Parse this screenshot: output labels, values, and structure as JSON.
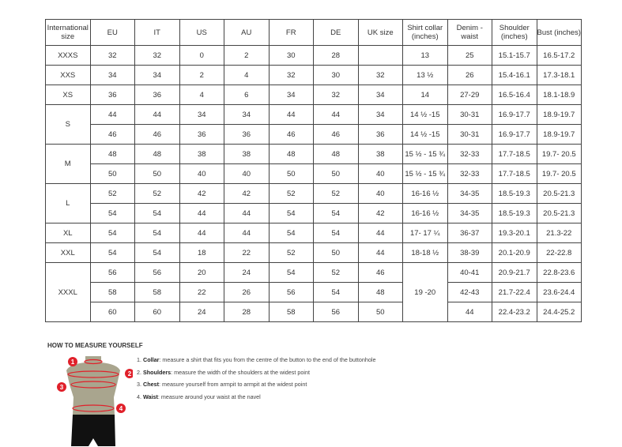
{
  "table": {
    "headers": [
      "International size",
      "EU",
      "IT",
      "US",
      "AU",
      "FR",
      "DE",
      "UK size",
      "Shirt collar (inches)",
      "Denim - waist",
      "Shoulder (inches)",
      "Bust (inches)"
    ],
    "groups": [
      {
        "size": "XXXS",
        "rows": [
          [
            "32",
            "32",
            "0",
            "2",
            "30",
            "28",
            "",
            "13",
            "25",
            "15.1-15.7",
            "16.5-17.2"
          ]
        ]
      },
      {
        "size": "XXS",
        "rows": [
          [
            "34",
            "34",
            "2",
            "4",
            "32",
            "30",
            "32",
            "13 ½",
            "26",
            "15.4-16.1",
            "17.3-18.1"
          ]
        ]
      },
      {
        "size": "XS",
        "rows": [
          [
            "36",
            "36",
            "4",
            "6",
            "34",
            "32",
            "34",
            "14",
            "27-29",
            "16.5-16.4",
            "18.1-18.9"
          ]
        ]
      },
      {
        "size": "S",
        "rows": [
          [
            "44",
            "44",
            "34",
            "34",
            "44",
            "44",
            "34",
            "14 ½ -15",
            "30-31",
            "16.9-17.7",
            "18.9-19.7"
          ],
          [
            "46",
            "46",
            "36",
            "36",
            "46",
            "46",
            "36",
            "14 ½ -15",
            "30-31",
            "16.9-17.7",
            "18.9-19.7"
          ]
        ]
      },
      {
        "size": "M",
        "rows": [
          [
            "48",
            "48",
            "38",
            "38",
            "48",
            "48",
            "38",
            "15 ½ - 15 ¾",
            "32-33",
            "17.7-18.5",
            "19.7- 20.5"
          ],
          [
            "50",
            "50",
            "40",
            "40",
            "50",
            "50",
            "40",
            "15 ½ - 15 ¾",
            "32-33",
            "17.7-18.5",
            "19.7- 20.5"
          ]
        ]
      },
      {
        "size": "L",
        "rows": [
          [
            "52",
            "52",
            "42",
            "42",
            "52",
            "52",
            "40",
            "16-16 ½",
            "34-35",
            "18.5-19.3",
            "20.5-21.3"
          ],
          [
            "54",
            "54",
            "44",
            "44",
            "54",
            "54",
            "42",
            "16-16 ½",
            "34-35",
            "18.5-19.3",
            "20.5-21.3"
          ]
        ]
      },
      {
        "size": "XL",
        "rows": [
          [
            "54",
            "54",
            "44",
            "44",
            "54",
            "54",
            "44",
            "17- 17 ¼",
            "36-37",
            "19.3-20.1",
            "21.3-22"
          ]
        ]
      },
      {
        "size": "XXL",
        "rows": [
          [
            "54",
            "54",
            "18",
            "22",
            "52",
            "50",
            "44",
            "18-18 ½",
            "38-39",
            "20.1-20.9",
            "22-22.8"
          ]
        ]
      },
      {
        "size": "XXXL",
        "rows": [
          [
            "56",
            "56",
            "20",
            "24",
            "54",
            "52",
            "46",
            "19 -20",
            "40-41",
            "20.9-21.7",
            "22.8-23.6"
          ],
          [
            "58",
            "58",
            "22",
            "26",
            "56",
            "54",
            "48",
            null,
            "42-43",
            "21.7-22.4",
            "23.6-24.4"
          ],
          [
            "60",
            "60",
            "24",
            "28",
            "58",
            "56",
            "50",
            null,
            "44",
            "22.4-23.2",
            "24.4-25.2"
          ]
        ]
      }
    ]
  },
  "howto": {
    "title": "HOW TO MEASURE YOURSELF",
    "steps": [
      {
        "num": "1.",
        "term": "Collar",
        "text": ": measure a shirt that fits you from the centre of the button to the end of the buttonhole"
      },
      {
        "num": "2.",
        "term": "Shoulders",
        "text": ": measure the width of the shoulders at the widest point"
      },
      {
        "num": "3.",
        "term": "Chest",
        "text": ": measure yourself from armpit to armpit at the widest point"
      },
      {
        "num": "4.",
        "term": "Waist",
        "text": ": measure around your waist at the navel"
      }
    ],
    "markers": [
      "1",
      "2",
      "3",
      "4"
    ],
    "colors": {
      "marker": "#e0202a",
      "torso": "#a9a58e",
      "shorts": "#111111"
    }
  }
}
